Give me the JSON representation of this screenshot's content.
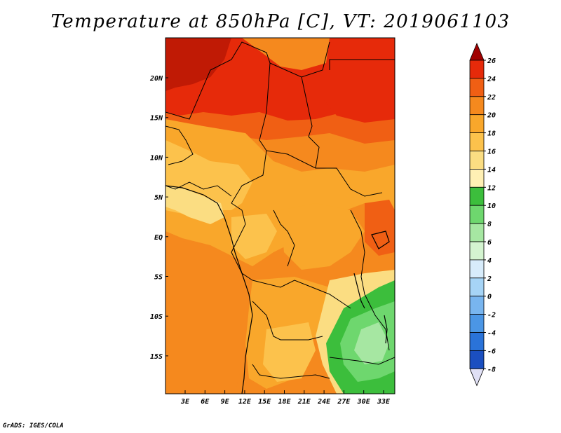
{
  "title": "Temperature at 850hPa [C], VT: 2019061103",
  "credit": "GrADS: IGES/COLA",
  "lat_labels": [
    "20N",
    "15N",
    "10N",
    "5N",
    "EQ",
    "5S",
    "10S",
    "15S"
  ],
  "lon_labels": [
    "3E",
    "6E",
    "9E",
    "12E",
    "15E",
    "18E",
    "21E",
    "24E",
    "27E",
    "30E",
    "33E"
  ],
  "colorbar": {
    "labels": [
      "26",
      "24",
      "22",
      "20",
      "18",
      "16",
      "14",
      "12",
      "10",
      "8",
      "6",
      "4",
      "2",
      "0",
      "-2",
      "-4",
      "-6",
      "-8"
    ],
    "colors": [
      "#a00000",
      "#e62a0a",
      "#f05f14",
      "#f5891e",
      "#f9a72b",
      "#fcc24c",
      "#fbdd82",
      "#fff0b4",
      "#3cbe3c",
      "#6ed76e",
      "#a6e7a2",
      "#d4f4d0",
      "#d8ecfb",
      "#a6d4f6",
      "#78b5ef",
      "#4b96e5",
      "#2a73d9",
      "#1b4fc0",
      "#122e9d",
      "#0a0a6e",
      "#e0e0f5"
    ]
  }
}
